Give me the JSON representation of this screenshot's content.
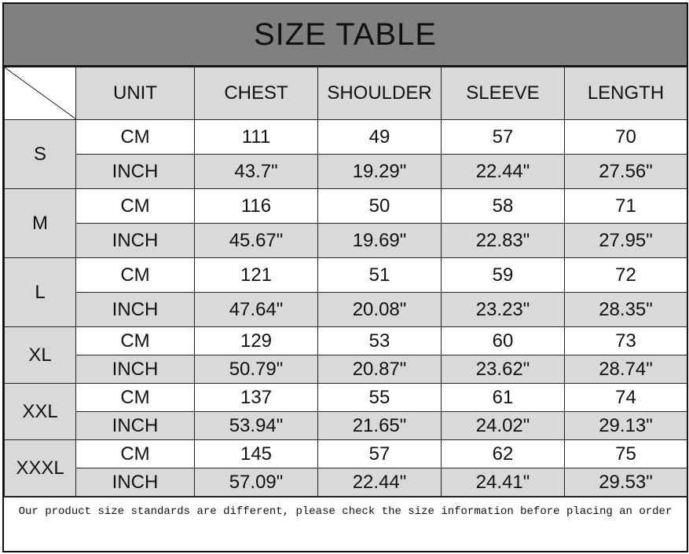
{
  "title": "SIZE TABLE",
  "headers": [
    "UNIT",
    "CHEST",
    "SHOULDER",
    "SLEEVE",
    "LENGTH"
  ],
  "rows": [
    {
      "size": "S",
      "cm": {
        "unit": "CM",
        "values": [
          "111",
          "49",
          "57",
          "70"
        ]
      },
      "inch": {
        "unit": "INCH",
        "values": [
          "43.7\"",
          "19.29\"",
          "22.44\"",
          "27.56\""
        ]
      }
    },
    {
      "size": "M",
      "cm": {
        "unit": "CM",
        "values": [
          "116",
          "50",
          "58",
          "71"
        ]
      },
      "inch": {
        "unit": "INCH",
        "values": [
          "45.67\"",
          "19.69\"",
          "22.83\"",
          "27.95\""
        ]
      }
    },
    {
      "size": "L",
      "cm": {
        "unit": "CM",
        "values": [
          "121",
          "51",
          "59",
          "72"
        ]
      },
      "inch": {
        "unit": "INCH",
        "values": [
          "47.64\"",
          "20.08\"",
          "23.23\"",
          "28.35\""
        ]
      }
    },
    {
      "size": "XL",
      "cm": {
        "unit": "CM",
        "values": [
          "129",
          "53",
          "60",
          "73"
        ]
      },
      "inch": {
        "unit": "INCH",
        "values": [
          "50.79\"",
          "20.87\"",
          "23.62\"",
          "28.74\""
        ]
      }
    },
    {
      "size": "XXL",
      "cm": {
        "unit": "CM",
        "values": [
          "137",
          "55",
          "61",
          "74"
        ]
      },
      "inch": {
        "unit": "INCH",
        "values": [
          "53.94\"",
          "21.65\"",
          "24.02\"",
          "29.13\""
        ]
      }
    },
    {
      "size": "XXXL",
      "cm": {
        "unit": "CM",
        "values": [
          "145",
          "57",
          "62",
          "75"
        ]
      },
      "inch": {
        "unit": "INCH",
        "values": [
          "57.09\"",
          "22.44\"",
          "24.41\"",
          "29.53\""
        ]
      }
    }
  ],
  "footer": "Our product size standards are different, please check the size information before placing an order",
  "colors": {
    "title_bg": "#808080",
    "header_bg": "#d9d9d9",
    "inch_row_bg": "#d9d9d9",
    "cm_row_bg": "#ffffff"
  }
}
